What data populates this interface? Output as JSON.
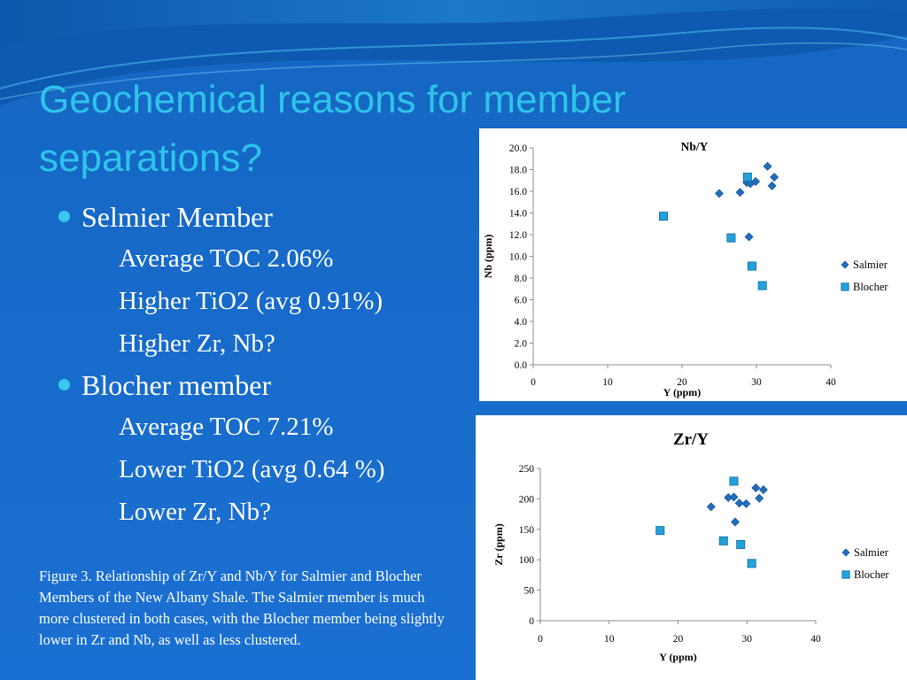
{
  "slide": {
    "title": "Geochemical reasons for member separations?",
    "bullets": [
      {
        "level": 1,
        "text": "Selmier Member"
      },
      {
        "level": 2,
        "text": "Average TOC 2.06%"
      },
      {
        "level": 2,
        "text": "Higher TiO2 (avg 0.91%)"
      },
      {
        "level": 2,
        "text": "Higher Zr, Nb?"
      },
      {
        "level": 1,
        "text": "Blocher member"
      },
      {
        "level": 2,
        "text": "Average TOC 7.21%"
      },
      {
        "level": 2,
        "text": "Lower TiO2 (avg 0.64 %)"
      },
      {
        "level": 2,
        "text": "Lower Zr, Nb?"
      }
    ],
    "caption": "Figure 3. Relationship of Zr/Y and Nb/Y for Salmier and Blocher Members of the New Albany Shale. The Salmier member is much more clustered in both cases, with the Blocher member being slightly lower in Zr and Nb, as well as less clustered."
  },
  "colors": {
    "background": "#1a6fd0",
    "title": "#2ec4ea",
    "bullet": "#38c8f0",
    "salmier": "#1f6fc0",
    "blocher": "#22a2dc"
  },
  "chart_data": [
    {
      "type": "scatter",
      "title": "Nb/Y",
      "xlabel": "Y (ppm)",
      "ylabel": "Nb (ppm)",
      "xlim": [
        0,
        40
      ],
      "ylim": [
        0,
        20
      ],
      "xticks": [
        "0",
        "10",
        "20",
        "30",
        "40"
      ],
      "yticks": [
        "0.0",
        "2.0",
        "4.0",
        "6.0",
        "8.0",
        "10.0",
        "12.0",
        "14.0",
        "16.0",
        "18.0",
        "20.0"
      ],
      "legend_position": "right",
      "grid": false,
      "series": [
        {
          "name": "Salmier",
          "marker": "diamond",
          "points": [
            [
              25,
              15.8
            ],
            [
              27.8,
              15.9
            ],
            [
              28.7,
              16.8
            ],
            [
              29,
              11.8
            ],
            [
              29.2,
              16.7
            ],
            [
              29.9,
              16.9
            ],
            [
              31.5,
              18.3
            ],
            [
              32.1,
              16.5
            ],
            [
              32.4,
              17.3
            ]
          ]
        },
        {
          "name": "Blocher",
          "marker": "square",
          "points": [
            [
              17.5,
              13.7
            ],
            [
              26.6,
              11.7
            ],
            [
              28.8,
              17.3
            ],
            [
              29.4,
              9.1
            ],
            [
              30.8,
              7.3
            ]
          ]
        }
      ]
    },
    {
      "type": "scatter",
      "title": "Zr/Y",
      "xlabel": "Y (ppm)",
      "ylabel": "Zr (ppm)",
      "xlim": [
        0,
        40
      ],
      "ylim": [
        0,
        250
      ],
      "xticks": [
        "0",
        "10",
        "20",
        "30",
        "40"
      ],
      "yticks": [
        "0",
        "50",
        "100",
        "150",
        "200",
        "250"
      ],
      "legend_position": "right",
      "grid": false,
      "series": [
        {
          "name": "Salmier",
          "marker": "diamond",
          "points": [
            [
              24.8,
              187
            ],
            [
              27.3,
              202
            ],
            [
              28.1,
              203
            ],
            [
              28.3,
              162
            ],
            [
              28.9,
              193
            ],
            [
              29.9,
              192
            ],
            [
              31.3,
              218
            ],
            [
              31.8,
              201
            ],
            [
              32.4,
              215
            ]
          ]
        },
        {
          "name": "Blocher",
          "marker": "square",
          "points": [
            [
              17.4,
              148
            ],
            [
              26.6,
              131
            ],
            [
              28.1,
              229
            ],
            [
              29.1,
              125
            ],
            [
              30.7,
              94
            ]
          ]
        }
      ]
    }
  ]
}
